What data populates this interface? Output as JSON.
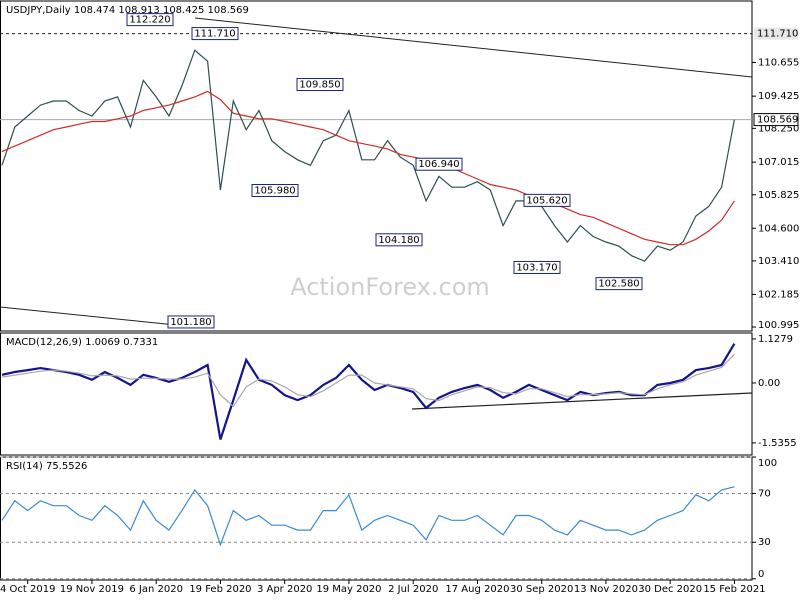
{
  "chart_data": [
    {
      "type": "line",
      "title": "USDJPY,Daily  108.474 108.913 108.425 108.569",
      "watermark": "ActionForex.com",
      "series": [
        {
          "color": "#2f4f4f",
          "values": [
            106.9,
            108.3,
            108.7,
            109.1,
            109.25,
            109.25,
            108.9,
            108.7,
            109.25,
            109.4,
            108.3,
            110.0,
            109.4,
            108.7,
            109.8,
            111.1,
            110.7,
            106.0,
            109.25,
            108.2,
            108.9,
            107.8,
            107.4,
            107.1,
            106.9,
            107.8,
            108.0,
            108.9,
            107.1,
            107.1,
            107.8,
            107.2,
            106.9,
            105.6,
            106.5,
            106.1,
            106.1,
            106.3,
            106.0,
            104.7,
            105.6,
            105.6,
            105.4,
            104.7,
            104.1,
            104.7,
            104.3,
            104.1,
            103.95,
            103.6,
            103.4,
            103.95,
            103.8,
            104.1,
            105.05,
            105.4,
            106.1,
            108.569
          ]
        },
        {
          "color": "#d02a2a",
          "values": [
            107.4,
            107.6,
            107.8,
            108.0,
            108.2,
            108.3,
            108.4,
            108.5,
            108.5,
            108.6,
            108.7,
            108.9,
            109.0,
            109.1,
            109.25,
            109.4,
            109.6,
            109.3,
            108.8,
            108.7,
            108.6,
            108.6,
            108.5,
            108.4,
            108.3,
            108.2,
            108.0,
            107.8,
            107.7,
            107.6,
            107.5,
            107.3,
            107.2,
            107.1,
            106.9,
            106.8,
            106.6,
            106.4,
            106.2,
            106.1,
            106.0,
            105.8,
            105.6,
            105.5,
            105.3,
            105.1,
            105.0,
            104.8,
            104.6,
            104.4,
            104.2,
            104.1,
            104.0,
            104.0,
            104.2,
            104.5,
            104.9,
            105.6
          ]
        }
      ],
      "ylim": [
        100.85,
        112.9
      ],
      "yticks": [
        110.655,
        109.425,
        {
          "value": 108.25,
          "label": "108.250"
        },
        107.015,
        105.825,
        {
          "value": 104.6,
          "label": "104.600"
        },
        {
          "value": 103.41,
          "label": "103.410"
        },
        102.185,
        100.995
      ],
      "grid": false,
      "hline": {
        "value": 111.71,
        "label": "111.710"
      },
      "last_price": {
        "value": 108.569,
        "label": "108.569"
      },
      "annotations": [
        {
          "value": 112.22,
          "label": "112.220"
        },
        {
          "value": 111.71,
          "label": "111.710"
        },
        {
          "value": 109.85,
          "label": "109.850"
        },
        {
          "value": 105.98,
          "label": "105.980"
        },
        {
          "value": 104.18,
          "label": "104.180"
        },
        {
          "value": 106.94,
          "label": "106.940"
        },
        {
          "value": 105.62,
          "label": "105.620"
        },
        {
          "value": 103.17,
          "label": "103.170"
        },
        {
          "value": 102.58,
          "label": "102.580"
        },
        {
          "value": 101.18,
          "label": "101.180"
        }
      ]
    },
    {
      "type": "line",
      "title": "MACD(12,26,9) 1.0069 0.7331",
      "series": [
        {
          "color": "#14148c",
          "values": [
            0.21,
            0.28,
            0.33,
            0.38,
            0.33,
            0.28,
            0.21,
            0.08,
            0.28,
            0.13,
            -0.05,
            0.21,
            0.13,
            0.03,
            0.13,
            0.28,
            0.46,
            -1.45,
            -0.44,
            0.59,
            0.08,
            -0.05,
            -0.31,
            -0.44,
            -0.31,
            -0.05,
            0.13,
            0.46,
            0.08,
            -0.18,
            -0.05,
            -0.13,
            -0.23,
            -0.64,
            -0.38,
            -0.23,
            -0.13,
            -0.05,
            -0.18,
            -0.38,
            -0.23,
            -0.05,
            -0.18,
            -0.31,
            -0.44,
            -0.23,
            -0.31,
            -0.26,
            -0.23,
            -0.31,
            -0.31,
            -0.05,
            0,
            0.08,
            0.33,
            0.38,
            0.46,
            1.0069
          ]
        },
        {
          "color": "#a8a8a8",
          "values": [
            0.15,
            0.2,
            0.25,
            0.3,
            0.33,
            0.3,
            0.25,
            0.18,
            0.2,
            0.18,
            0.1,
            0.12,
            0.12,
            0.1,
            0.1,
            0.15,
            0.25,
            -0.3,
            -0.6,
            -0.1,
            0.1,
            0.05,
            -0.1,
            -0.3,
            -0.35,
            -0.2,
            0.0,
            0.2,
            0.2,
            0.0,
            -0.05,
            -0.1,
            -0.15,
            -0.4,
            -0.45,
            -0.3,
            -0.2,
            -0.1,
            -0.12,
            -0.25,
            -0.28,
            -0.15,
            -0.15,
            -0.25,
            -0.35,
            -0.3,
            -0.3,
            -0.28,
            -0.25,
            -0.28,
            -0.3,
            -0.15,
            -0.05,
            0.03,
            0.2,
            0.3,
            0.4,
            0.7331
          ]
        }
      ],
      "ylim": [
        -1.846,
        1.28
      ],
      "yticks": [
        1.1279,
        {
          "value": 0,
          "label": "0.00"
        },
        -1.5355
      ],
      "grid": false
    },
    {
      "type": "line",
      "title": "RSI(14) 75.5526",
      "categories": [
        null,
        null,
        "4 Oct 2019",
        null,
        null,
        null,
        null,
        "19 Nov 2019",
        null,
        null,
        null,
        null,
        "6 Jan 2020",
        null,
        null,
        null,
        null,
        "19 Feb 2020",
        null,
        null,
        null,
        null,
        "3 Apr 2020",
        null,
        null,
        null,
        null,
        "19 May 2020",
        null,
        null,
        null,
        null,
        "2 Jul 2020",
        null,
        null,
        null,
        null,
        "17 Aug 2020",
        null,
        null,
        null,
        null,
        "30 Sep 2020",
        null,
        null,
        null,
        null,
        "13 Nov 2020",
        null,
        null,
        null,
        null,
        "30 Dec 2020",
        null,
        null,
        null,
        null,
        "15 Feb 2021"
      ],
      "series": [
        {
          "color": "#3a8ad6",
          "values": [
            48,
            64,
            56,
            64,
            60,
            60,
            52,
            48,
            60,
            52,
            40,
            64,
            48,
            40,
            56,
            73,
            60,
            28,
            56,
            48,
            52,
            44,
            44,
            40,
            40,
            56,
            56,
            69,
            40,
            48,
            52,
            48,
            44,
            32,
            52,
            48,
            48,
            52,
            44,
            36,
            52,
            52,
            48,
            40,
            36,
            48,
            44,
            40,
            40,
            36,
            40,
            48,
            52,
            56,
            69,
            64,
            73,
            75.5526
          ]
        }
      ],
      "ylim": [
        -1,
        100
      ],
      "yticks": [
        100,
        70,
        30,
        0
      ],
      "grid": true
    }
  ]
}
